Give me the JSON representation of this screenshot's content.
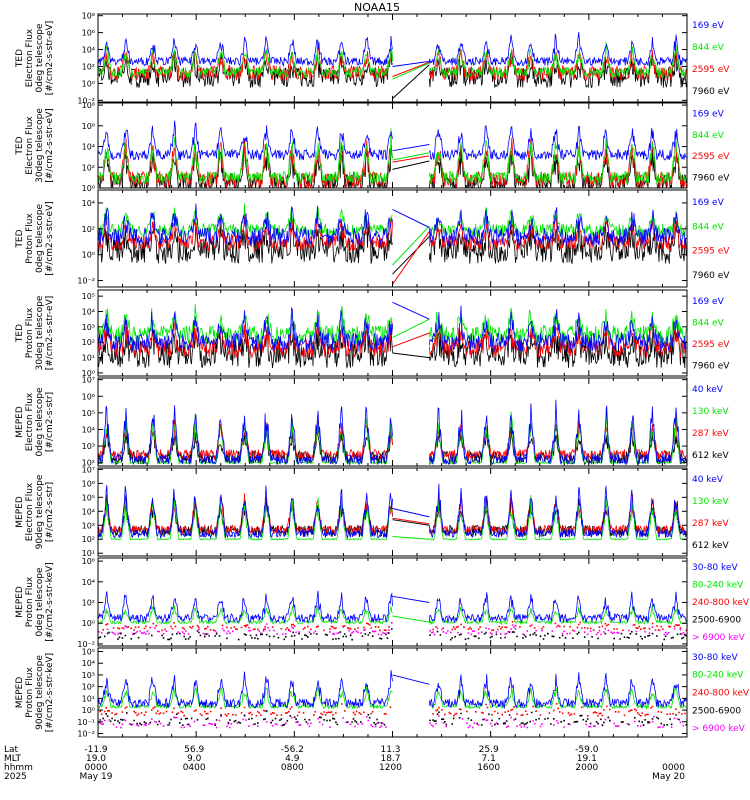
{
  "title": "NOAA15",
  "colors": {
    "black": "#000000",
    "red": "#ff0000",
    "green": "#00e600",
    "blue": "#0000ff",
    "magenta": "#ff00ff",
    "gap_line": "#000000"
  },
  "footer": {
    "row_labels": [
      "Lat",
      "MLT",
      "hhmm",
      "2025"
    ],
    "columns": [
      {
        "lat": "-11.9",
        "mlt": "19.0",
        "hhmm": "0000",
        "date": "May 19"
      },
      {
        "lat": "56.9",
        "mlt": "9.0",
        "hhmm": "0400",
        "date": ""
      },
      {
        "lat": "-56.2",
        "mlt": "4.9",
        "hhmm": "0800",
        "date": ""
      },
      {
        "lat": "11.3",
        "mlt": "18.7",
        "hhmm": "1200",
        "date": ""
      },
      {
        "lat": "25.9",
        "mlt": "7.1",
        "hhmm": "1600",
        "date": ""
      },
      {
        "lat": "-59.0",
        "mlt": "19.1",
        "hhmm": "2000",
        "date": ""
      },
      {
        "lat": "",
        "mlt": "",
        "hhmm": "0000",
        "date": "May 20"
      }
    ]
  },
  "chart_data": [
    {
      "type": "line",
      "ylabel": [
        "TED",
        "Electron Flux",
        "0deg telescope",
        "[#/cm2-s-str-eV]"
      ],
      "yscale": "log",
      "ytick_labels": [
        "10⁻²",
        "10⁰",
        "10²",
        "10⁴",
        "10⁶",
        "10⁸"
      ],
      "ylim_exp": [
        -2.2,
        8.2
      ],
      "x_range_hours": [
        0,
        24
      ],
      "data_gap_hours": [
        12.0,
        13.5
      ],
      "series": [
        {
          "name": "7960 eV",
          "color": "black",
          "level": 0.7,
          "peak": 2.3,
          "noise": 1.2,
          "gap_start": -1.8,
          "gap_end": 2.2
        },
        {
          "name": "2595 eV",
          "color": "red",
          "level": 1.2,
          "peak": 2.6,
          "noise": 0.9,
          "gap_start": 0.8,
          "gap_end": 2.5
        },
        {
          "name": "844 eV",
          "color": "green",
          "level": 1.3,
          "peak": 3.0,
          "noise": 0.6,
          "gap_start": 0.5,
          "gap_end": 2.4
        },
        {
          "name": "169 eV",
          "color": "blue",
          "level": 2.6,
          "peak": 3.0,
          "noise": 0.5,
          "gap_start": 2.0,
          "gap_end": 2.6
        }
      ]
    },
    {
      "type": "line",
      "ylabel": [
        "TED",
        "Electron Flux",
        "30deg telescope",
        "[#/cm2-s-str-eV]"
      ],
      "yscale": "log",
      "ytick_labels": [
        "10⁰",
        "10²",
        "10⁴",
        "10⁶",
        "10⁸"
      ],
      "ylim_exp": [
        0,
        8.2
      ],
      "x_range_hours": [
        0,
        24
      ],
      "data_gap_hours": [
        12.0,
        13.5
      ],
      "series": [
        {
          "name": "7960 eV",
          "color": "black",
          "level": 0.4,
          "peak": 3.5,
          "noise": 1.0,
          "gap_start": 1.8,
          "gap_end": 2.6
        },
        {
          "name": "2595 eV",
          "color": "red",
          "level": 0.8,
          "peak": 3.8,
          "noise": 0.8,
          "gap_start": 2.5,
          "gap_end": 3.1
        },
        {
          "name": "844 eV",
          "color": "green",
          "level": 1.0,
          "peak": 4.0,
          "noise": 0.6,
          "gap_start": 2.7,
          "gap_end": 3.4
        },
        {
          "name": "169 eV",
          "color": "blue",
          "level": 3.2,
          "peak": 3.0,
          "noise": 0.5,
          "gap_start": 3.6,
          "gap_end": 4.2
        }
      ]
    },
    {
      "type": "line",
      "ylabel": [
        "TED",
        "Proton Flux",
        "0deg telescope",
        "[#/cm2-s-str-eV]"
      ],
      "yscale": "log",
      "ytick_labels": [
        "10⁻²",
        "10⁰",
        "10²",
        "10⁴"
      ],
      "ylim_exp": [
        -2.5,
        5.0
      ],
      "x_range_hours": [
        0,
        24
      ],
      "data_gap_hours": [
        12.0,
        13.5
      ],
      "series": [
        {
          "name": "7960 eV",
          "color": "black",
          "level": 0.3,
          "peak": 1.5,
          "noise": 1.0,
          "gap_start": -1.5,
          "gap_end": 1.4
        },
        {
          "name": "2595 eV",
          "color": "red",
          "level": 0.9,
          "peak": 1.8,
          "noise": 0.6,
          "gap_start": -2.3,
          "gap_end": 1.8
        },
        {
          "name": "844 eV",
          "color": "green",
          "level": 1.9,
          "peak": 1.6,
          "noise": 0.5,
          "gap_start": -0.8,
          "gap_end": 2.2
        },
        {
          "name": "169 eV",
          "color": "blue",
          "level": 1.4,
          "peak": 2.0,
          "noise": 0.7,
          "gap_start": 3.5,
          "gap_end": 2.1
        }
      ]
    },
    {
      "type": "line",
      "ylabel": [
        "TED",
        "Proton Flux",
        "30deg telescope",
        "[#/cm2-s-str-eV]"
      ],
      "yscale": "log",
      "ytick_labels": [
        "10⁰",
        "10¹",
        "10²",
        "10³",
        "10⁴",
        "10⁵"
      ],
      "ylim_exp": [
        -0.2,
        5.4
      ],
      "x_range_hours": [
        0,
        24
      ],
      "data_gap_hours": [
        12.0,
        13.5
      ],
      "series": [
        {
          "name": "7960 eV",
          "color": "black",
          "level": 1.2,
          "peak": 1.4,
          "noise": 0.9,
          "gap_start": 1.3,
          "gap_end": 1.0
        },
        {
          "name": "2595 eV",
          "color": "red",
          "level": 1.6,
          "peak": 1.6,
          "noise": 0.6,
          "gap_start": 1.7,
          "gap_end": 2.6
        },
        {
          "name": "844 eV",
          "color": "green",
          "level": 2.5,
          "peak": 1.4,
          "noise": 0.6,
          "gap_start": 2.3,
          "gap_end": 3.5
        },
        {
          "name": "169 eV",
          "color": "blue",
          "level": 2.0,
          "peak": 1.8,
          "noise": 0.6,
          "gap_start": 4.6,
          "gap_end": 3.5
        }
      ]
    },
    {
      "type": "line",
      "ylabel": [
        "MEPED",
        "Electron Flux",
        "0deg telescope",
        "[#/cm2-s-str]"
      ],
      "yscale": "log",
      "ytick_labels": [
        "10²",
        "10³",
        "10⁴",
        "10⁵",
        "10⁶",
        "10⁷"
      ],
      "ylim_exp": [
        1.8,
        7.1
      ],
      "x_range_hours": [
        0,
        24
      ],
      "data_gap_hours": [
        12.0,
        13.5
      ],
      "gap_connected": false,
      "series": [
        {
          "name": "612 keV",
          "color": "black",
          "level": 2.3,
          "peak": 1.6,
          "noise": 0.4
        },
        {
          "name": "287 keV",
          "color": "red",
          "level": 2.5,
          "peak": 2.0,
          "noise": 0.3
        },
        {
          "name": "130 keV",
          "color": "green",
          "level": 2.0,
          "peak": 3.0,
          "noise": 0.05
        },
        {
          "name": "40 keV",
          "color": "blue",
          "level": 2.2,
          "peak": 3.3,
          "noise": 0.3
        }
      ]
    },
    {
      "type": "line",
      "ylabel": [
        "MEPED",
        "Electron Flux",
        "90deg telescope",
        "[#/cm2-s-str]"
      ],
      "yscale": "log",
      "ytick_labels": [
        "10¹",
        "10²",
        "10³",
        "10⁴",
        "10⁵",
        "10⁶",
        "10⁷"
      ],
      "ylim_exp": [
        0.8,
        7.1
      ],
      "x_range_hours": [
        0,
        24
      ],
      "data_gap_hours": [
        12.0,
        13.5
      ],
      "series": [
        {
          "name": "612 keV",
          "color": "black",
          "level": 2.6,
          "peak": 2.2,
          "noise": 0.4,
          "gap_start": 3.4,
          "gap_end": 3.0
        },
        {
          "name": "287 keV",
          "color": "red",
          "level": 2.7,
          "peak": 2.4,
          "noise": 0.3,
          "gap_start": 3.5,
          "gap_end": 3.1
        },
        {
          "name": "130 keV",
          "color": "green",
          "level": 2.0,
          "peak": 3.0,
          "noise": 0.05,
          "gap_start": 2.2,
          "gap_end": 2.0
        },
        {
          "name": "40 keV",
          "color": "blue",
          "level": 2.4,
          "peak": 3.4,
          "noise": 0.3,
          "gap_start": 4.2,
          "gap_end": 3.6
        }
      ]
    },
    {
      "type": "line",
      "ylabel": [
        "MEPED",
        "Proton Flux",
        "0deg telescope",
        "[#/cm2-s-str-keV]"
      ],
      "yscale": "log",
      "ytick_labels": [
        "10⁻²",
        "10⁰",
        "10²",
        "10⁴",
        "10⁶"
      ],
      "ylim_exp": [
        -2.2,
        6.3
      ],
      "x_range_hours": [
        0,
        24
      ],
      "data_gap_hours": [
        12.0,
        13.5
      ],
      "series": [
        {
          "name": "> 6900 keV",
          "color": "magenta",
          "level": -0.9,
          "peak": 0.8,
          "noise": 0.2,
          "sparse": true
        },
        {
          "name": "2500-6900",
          "color": "black",
          "level": -1.3,
          "peak": 0.5,
          "noise": 0.3,
          "sparse": true
        },
        {
          "name": "240-800 keV",
          "color": "red",
          "level": -0.5,
          "peak": 0.5,
          "noise": 0.2,
          "sparse": true
        },
        {
          "name": "80-240 keV",
          "color": "green",
          "level": 0.1,
          "peak": 1.6,
          "noise": 0.15,
          "gap_start": 0.7,
          "gap_end": 0.1
        },
        {
          "name": "30-80 keV",
          "color": "blue",
          "level": 0.5,
          "peak": 2.4,
          "noise": 0.4,
          "gap_start": 2.6,
          "gap_end": 2.0
        }
      ]
    },
    {
      "type": "line",
      "ylabel": [
        "MEPED",
        "Proton Flux",
        "90deg telescope",
        "[#/cm2-s-str-keV]"
      ],
      "yscale": "log",
      "ytick_labels": [
        "10⁻²",
        "10⁻¹",
        "10⁰",
        "10¹",
        "10²",
        "10³",
        "10⁴",
        "10⁵"
      ],
      "ylim_exp": [
        -2.3,
        5.3
      ],
      "x_range_hours": [
        0,
        24
      ],
      "data_gap_hours": [
        12.0,
        13.5
      ],
      "series": [
        {
          "name": "> 6900 keV",
          "color": "magenta",
          "level": -1.3,
          "peak": 0.8,
          "noise": 0.2,
          "sparse": true
        },
        {
          "name": "2500-6900",
          "color": "black",
          "level": -1.0,
          "peak": 0.8,
          "noise": 0.3,
          "sparse": true
        },
        {
          "name": "240-800 keV",
          "color": "red",
          "level": -0.3,
          "peak": 0.7,
          "noise": 0.2,
          "sparse": true
        },
        {
          "name": "80-240 keV",
          "color": "green",
          "level": 0.3,
          "peak": 1.8,
          "noise": 0.15
        },
        {
          "name": "30-80 keV",
          "color": "blue",
          "level": 0.6,
          "peak": 2.5,
          "noise": 0.4,
          "gap_start": 3.0,
          "gap_end": 2.2
        }
      ]
    }
  ]
}
